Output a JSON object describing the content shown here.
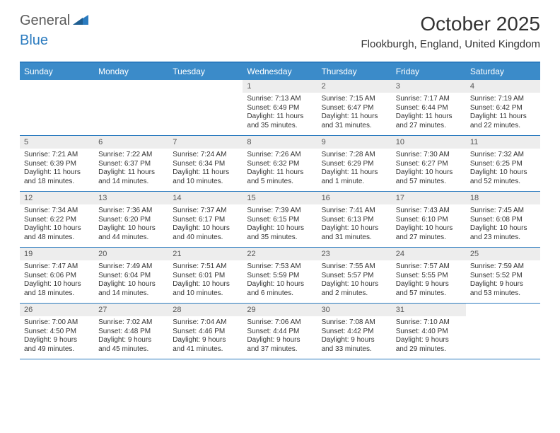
{
  "logo": {
    "part1": "General",
    "part2": "Blue"
  },
  "title": "October 2025",
  "location": "Flookburgh, England, United Kingdom",
  "colors": {
    "header_bg": "#3b8bc9",
    "border": "#2b7bbf",
    "daynum_bg": "#ededed",
    "text": "#333333"
  },
  "day_names": [
    "Sunday",
    "Monday",
    "Tuesday",
    "Wednesday",
    "Thursday",
    "Friday",
    "Saturday"
  ],
  "weeks": [
    [
      {
        "n": "",
        "sr": "",
        "ss": "",
        "dl": ""
      },
      {
        "n": "",
        "sr": "",
        "ss": "",
        "dl": ""
      },
      {
        "n": "",
        "sr": "",
        "ss": "",
        "dl": ""
      },
      {
        "n": "1",
        "sr": "Sunrise: 7:13 AM",
        "ss": "Sunset: 6:49 PM",
        "dl": "Daylight: 11 hours and 35 minutes."
      },
      {
        "n": "2",
        "sr": "Sunrise: 7:15 AM",
        "ss": "Sunset: 6:47 PM",
        "dl": "Daylight: 11 hours and 31 minutes."
      },
      {
        "n": "3",
        "sr": "Sunrise: 7:17 AM",
        "ss": "Sunset: 6:44 PM",
        "dl": "Daylight: 11 hours and 27 minutes."
      },
      {
        "n": "4",
        "sr": "Sunrise: 7:19 AM",
        "ss": "Sunset: 6:42 PM",
        "dl": "Daylight: 11 hours and 22 minutes."
      }
    ],
    [
      {
        "n": "5",
        "sr": "Sunrise: 7:21 AM",
        "ss": "Sunset: 6:39 PM",
        "dl": "Daylight: 11 hours and 18 minutes."
      },
      {
        "n": "6",
        "sr": "Sunrise: 7:22 AM",
        "ss": "Sunset: 6:37 PM",
        "dl": "Daylight: 11 hours and 14 minutes."
      },
      {
        "n": "7",
        "sr": "Sunrise: 7:24 AM",
        "ss": "Sunset: 6:34 PM",
        "dl": "Daylight: 11 hours and 10 minutes."
      },
      {
        "n": "8",
        "sr": "Sunrise: 7:26 AM",
        "ss": "Sunset: 6:32 PM",
        "dl": "Daylight: 11 hours and 5 minutes."
      },
      {
        "n": "9",
        "sr": "Sunrise: 7:28 AM",
        "ss": "Sunset: 6:29 PM",
        "dl": "Daylight: 11 hours and 1 minute."
      },
      {
        "n": "10",
        "sr": "Sunrise: 7:30 AM",
        "ss": "Sunset: 6:27 PM",
        "dl": "Daylight: 10 hours and 57 minutes."
      },
      {
        "n": "11",
        "sr": "Sunrise: 7:32 AM",
        "ss": "Sunset: 6:25 PM",
        "dl": "Daylight: 10 hours and 52 minutes."
      }
    ],
    [
      {
        "n": "12",
        "sr": "Sunrise: 7:34 AM",
        "ss": "Sunset: 6:22 PM",
        "dl": "Daylight: 10 hours and 48 minutes."
      },
      {
        "n": "13",
        "sr": "Sunrise: 7:36 AM",
        "ss": "Sunset: 6:20 PM",
        "dl": "Daylight: 10 hours and 44 minutes."
      },
      {
        "n": "14",
        "sr": "Sunrise: 7:37 AM",
        "ss": "Sunset: 6:17 PM",
        "dl": "Daylight: 10 hours and 40 minutes."
      },
      {
        "n": "15",
        "sr": "Sunrise: 7:39 AM",
        "ss": "Sunset: 6:15 PM",
        "dl": "Daylight: 10 hours and 35 minutes."
      },
      {
        "n": "16",
        "sr": "Sunrise: 7:41 AM",
        "ss": "Sunset: 6:13 PM",
        "dl": "Daylight: 10 hours and 31 minutes."
      },
      {
        "n": "17",
        "sr": "Sunrise: 7:43 AM",
        "ss": "Sunset: 6:10 PM",
        "dl": "Daylight: 10 hours and 27 minutes."
      },
      {
        "n": "18",
        "sr": "Sunrise: 7:45 AM",
        "ss": "Sunset: 6:08 PM",
        "dl": "Daylight: 10 hours and 23 minutes."
      }
    ],
    [
      {
        "n": "19",
        "sr": "Sunrise: 7:47 AM",
        "ss": "Sunset: 6:06 PM",
        "dl": "Daylight: 10 hours and 18 minutes."
      },
      {
        "n": "20",
        "sr": "Sunrise: 7:49 AM",
        "ss": "Sunset: 6:04 PM",
        "dl": "Daylight: 10 hours and 14 minutes."
      },
      {
        "n": "21",
        "sr": "Sunrise: 7:51 AM",
        "ss": "Sunset: 6:01 PM",
        "dl": "Daylight: 10 hours and 10 minutes."
      },
      {
        "n": "22",
        "sr": "Sunrise: 7:53 AM",
        "ss": "Sunset: 5:59 PM",
        "dl": "Daylight: 10 hours and 6 minutes."
      },
      {
        "n": "23",
        "sr": "Sunrise: 7:55 AM",
        "ss": "Sunset: 5:57 PM",
        "dl": "Daylight: 10 hours and 2 minutes."
      },
      {
        "n": "24",
        "sr": "Sunrise: 7:57 AM",
        "ss": "Sunset: 5:55 PM",
        "dl": "Daylight: 9 hours and 57 minutes."
      },
      {
        "n": "25",
        "sr": "Sunrise: 7:59 AM",
        "ss": "Sunset: 5:52 PM",
        "dl": "Daylight: 9 hours and 53 minutes."
      }
    ],
    [
      {
        "n": "26",
        "sr": "Sunrise: 7:00 AM",
        "ss": "Sunset: 4:50 PM",
        "dl": "Daylight: 9 hours and 49 minutes."
      },
      {
        "n": "27",
        "sr": "Sunrise: 7:02 AM",
        "ss": "Sunset: 4:48 PM",
        "dl": "Daylight: 9 hours and 45 minutes."
      },
      {
        "n": "28",
        "sr": "Sunrise: 7:04 AM",
        "ss": "Sunset: 4:46 PM",
        "dl": "Daylight: 9 hours and 41 minutes."
      },
      {
        "n": "29",
        "sr": "Sunrise: 7:06 AM",
        "ss": "Sunset: 4:44 PM",
        "dl": "Daylight: 9 hours and 37 minutes."
      },
      {
        "n": "30",
        "sr": "Sunrise: 7:08 AM",
        "ss": "Sunset: 4:42 PM",
        "dl": "Daylight: 9 hours and 33 minutes."
      },
      {
        "n": "31",
        "sr": "Sunrise: 7:10 AM",
        "ss": "Sunset: 4:40 PM",
        "dl": "Daylight: 9 hours and 29 minutes."
      },
      {
        "n": "",
        "sr": "",
        "ss": "",
        "dl": ""
      }
    ]
  ]
}
